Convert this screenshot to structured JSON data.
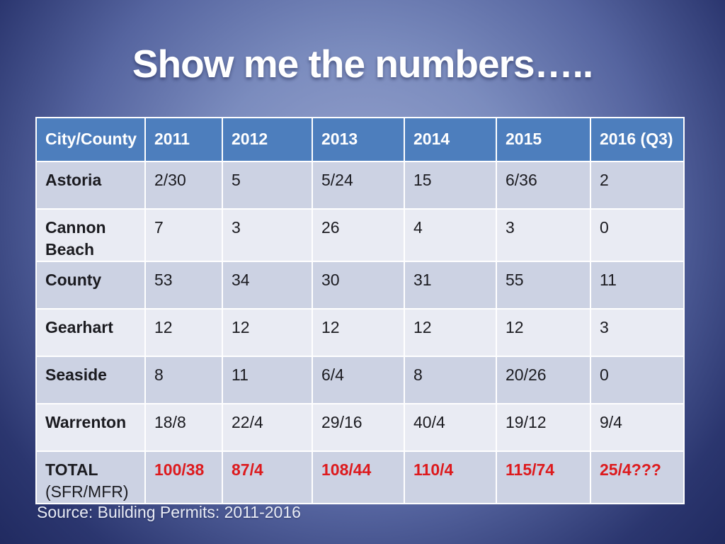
{
  "slide": {
    "title": "Show me the numbers…..",
    "source": "Source: Building Permits: 2011-2016"
  },
  "table": {
    "columns": [
      "City/County",
      "2011",
      "2012",
      "2013",
      "2014",
      "2015",
      "2016 (Q3)"
    ],
    "rows": [
      {
        "label": "Astoria",
        "sublabel": "",
        "total": false,
        "values": [
          "2/30",
          "5",
          "5/24",
          "15",
          "6/36",
          "2"
        ]
      },
      {
        "label": "Cannon Beach",
        "sublabel": "",
        "total": false,
        "values": [
          "7",
          "3",
          "26",
          "4",
          "3",
          "0"
        ]
      },
      {
        "label": "County",
        "sublabel": "",
        "total": false,
        "values": [
          "53",
          "34",
          "30",
          "31",
          "55",
          "11"
        ]
      },
      {
        "label": "Gearhart",
        "sublabel": "",
        "total": false,
        "values": [
          "12",
          "12",
          "12",
          "12",
          "12",
          "3"
        ]
      },
      {
        "label": "Seaside",
        "sublabel": "",
        "total": false,
        "values": [
          "8",
          "11",
          "6/4",
          "8",
          "20/26",
          "0"
        ]
      },
      {
        "label": "Warrenton",
        "sublabel": "",
        "total": false,
        "values": [
          "18/8",
          "22/4",
          "29/16",
          "40/4",
          "19/12",
          "9/4"
        ]
      },
      {
        "label": "TOTAL",
        "sublabel": "(SFR/MFR)",
        "total": true,
        "values": [
          "100/38",
          "87/4",
          "108/44",
          "110/4",
          "115/74",
          "25/4???"
        ]
      }
    ]
  },
  "colors": {
    "header_bg": "#4d7ebd",
    "row_band_dark": "#ccd2e3",
    "row_band_light": "#e9ebf3",
    "total_value_text": "#dd1a1d",
    "body_text": "#1b1b20",
    "title_text": "#ffffff"
  }
}
